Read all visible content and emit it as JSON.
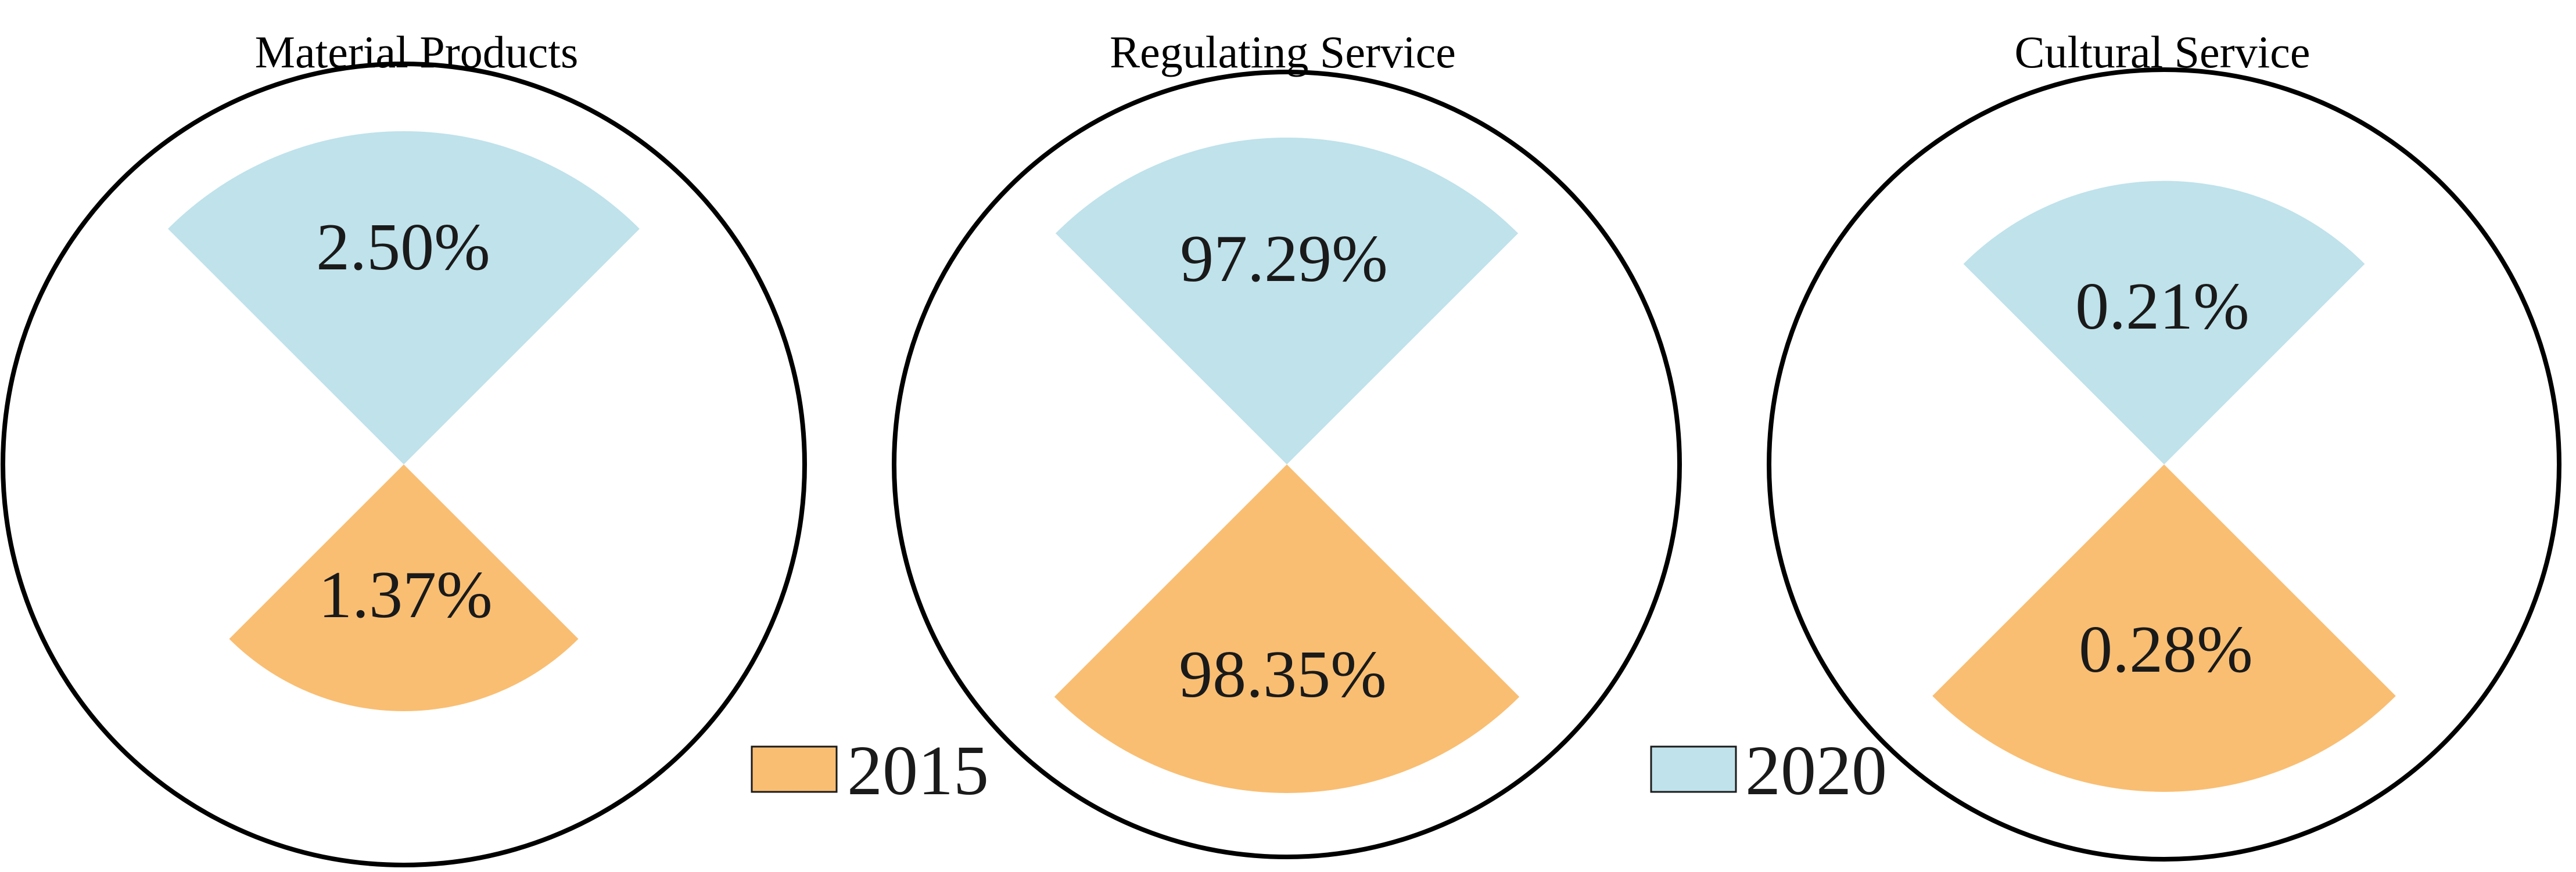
{
  "chart_data": {
    "type": "pie",
    "variant": "two-sector comparison per panel; sector radius scaled by value",
    "legend": [
      {
        "name": "2015",
        "color": "#F9BE72"
      },
      {
        "name": "2020",
        "color": "#BFE2EB"
      }
    ],
    "legend_placement": "bottom, between panels",
    "panels": [
      {
        "title": "Material Products",
        "slices": [
          {
            "series": "2020",
            "value": 2.5,
            "label": "2.50%",
            "direction": "up"
          },
          {
            "series": "2015",
            "value": 1.37,
            "label": "1.37%",
            "direction": "down"
          }
        ]
      },
      {
        "title": "Regulating Service",
        "slices": [
          {
            "series": "2020",
            "value": 97.29,
            "label": "97.29%",
            "direction": "up"
          },
          {
            "series": "2015",
            "value": 98.35,
            "label": "98.35%",
            "direction": "down"
          }
        ]
      },
      {
        "title": "Cultural Service",
        "slices": [
          {
            "series": "2020",
            "value": 0.21,
            "label": "0.21%",
            "direction": "up"
          },
          {
            "series": "2015",
            "value": 0.28,
            "label": "0.28%",
            "direction": "down"
          }
        ]
      }
    ]
  }
}
